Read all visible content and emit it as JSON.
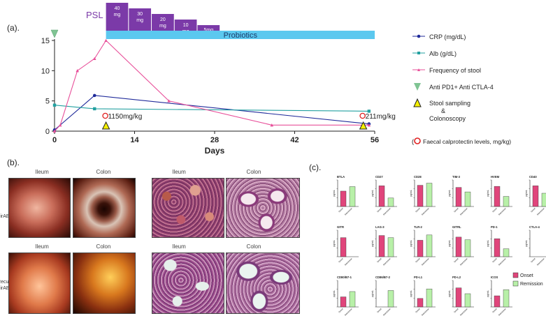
{
  "panel_labels": {
    "a": "(a).",
    "b": "(b).",
    "c": "(c)."
  },
  "chart_data": [
    {
      "type": "line",
      "panel": "a",
      "xlabel": "Days",
      "ylabel": "",
      "xlim": [
        0,
        56
      ],
      "ylim": [
        0,
        15
      ],
      "x_ticks": [
        0,
        14,
        28,
        42,
        56
      ],
      "y_ticks": [
        0,
        5,
        10,
        15
      ],
      "series": [
        {
          "name": "CRP (mg/dL)",
          "color": "#1f2a9a",
          "marker": "circle",
          "x": [
            0,
            7,
            55
          ],
          "y": [
            0.2,
            5.9,
            1.2
          ]
        },
        {
          "name": "Alb (g/dL)",
          "color": "#22a0a0",
          "marker": "square",
          "x": [
            0,
            7,
            55
          ],
          "y": [
            4.3,
            3.7,
            3.3
          ]
        },
        {
          "name": "Frequency of stool",
          "color": "#e8509a",
          "marker": "triangle",
          "x": [
            0,
            1,
            4,
            7,
            9,
            20,
            38,
            55
          ],
          "y": [
            0,
            1,
            10,
            12,
            15,
            5,
            1,
            1
          ]
        }
      ],
      "psl": {
        "label": "PSL",
        "color": "#7b3aa8",
        "doses": [
          {
            "text": "40\nmg",
            "x_start": 9,
            "x_end": 13,
            "level": 5
          },
          {
            "text": "30\nmg",
            "x_start": 13,
            "x_end": 17,
            "level": 4
          },
          {
            "text": "20\nmg",
            "x_start": 17,
            "x_end": 21,
            "level": 3
          },
          {
            "text": "10\nmg",
            "x_start": 21,
            "x_end": 25,
            "level": 2
          },
          {
            "text": "5mg",
            "x_start": 25,
            "x_end": 29,
            "level": 1
          }
        ]
      },
      "probiotics": {
        "label": "Probiotics",
        "x_start": 9,
        "x_end": 56,
        "color": "#5bc8ef"
      },
      "annotations": {
        "anti_pd1_day": 0,
        "stool_sampling_days": [
          9,
          54
        ],
        "calprotectin": [
          {
            "day": 9,
            "text": "1150mg/kg"
          },
          {
            "day": 54,
            "text": "211mg/kg"
          }
        ]
      },
      "legend": {
        "placement": "right",
        "entries": [
          {
            "label": "CRP (mg/dL)",
            "type": "line-circle",
            "color": "#1f2a9a"
          },
          {
            "label": "Alb (g/dL)",
            "type": "line-square",
            "color": "#22a0a0"
          },
          {
            "label": "Frequency of stool",
            "type": "line-triangle",
            "color": "#e8509a"
          },
          {
            "label": "Anti PD1+ Anti CTLA-4",
            "type": "green-triangle",
            "color": "#7fc493"
          },
          {
            "label": "Stool sampling\n&\nColonoscopy",
            "type": "yellow-triangle",
            "color": "#f5f000"
          },
          {
            "label": "Faecal calprotectin levels, mg/kg)",
            "type": "red-circle",
            "color": "#e02020",
            "prefix": "("
          }
        ]
      }
    },
    {
      "type": "bar",
      "panel": "c",
      "categories": [
        "Onset",
        "Remission"
      ],
      "colors": {
        "Onset": "#e0457b",
        "Remission": "#b8f0a8"
      },
      "legend": {
        "placement": "bottom-right",
        "entries": [
          "Onset",
          "Remission"
        ]
      },
      "ylabel": "pg/mL",
      "subplots": [
        {
          "title": "BTLA",
          "values": [
            0.58,
            0.75
          ]
        },
        {
          "title": "CD27",
          "values": [
            0.78,
            0.32
          ]
        },
        {
          "title": "CD28",
          "values": [
            0.8,
            0.88
          ]
        },
        {
          "title": "TIM-3",
          "values": [
            0.72,
            0.55
          ]
        },
        {
          "title": "HVEM",
          "values": [
            0.76,
            0.38
          ]
        },
        {
          "title": "CD40",
          "values": [
            0.78,
            0.5
          ]
        },
        {
          "title": "GITR",
          "values": [
            0.72,
            0.0
          ]
        },
        {
          "title": "LAG-3",
          "values": [
            0.8,
            0.72
          ]
        },
        {
          "title": "TLR-2",
          "values": [
            0.62,
            0.82
          ]
        },
        {
          "title": "GITRL",
          "values": [
            0.74,
            0.64
          ]
        },
        {
          "title": "PD-1",
          "values": [
            0.68,
            0.3
          ]
        },
        {
          "title": "CTLA-4",
          "values": [
            0.0,
            0.0
          ]
        },
        {
          "title": "CD80/B7-1",
          "values": [
            0.38,
            0.58
          ]
        },
        {
          "title": "CD86/B7-2",
          "values": [
            0.0,
            0.62
          ]
        },
        {
          "title": "PD-L1",
          "values": [
            0.32,
            0.68
          ]
        },
        {
          "title": "PD-L2",
          "values": [
            0.72,
            0.5
          ]
        },
        {
          "title": "ICOS",
          "values": [
            0.42,
            0.65
          ]
        }
      ]
    }
  ],
  "panel_b": {
    "col_titles": [
      "Ileum",
      "Colon",
      "Ileum",
      "Colon"
    ],
    "row_labels": [
      {
        "line1": "Onset of",
        "line2": "irAE enteritis"
      },
      {
        "line1": "Recurrence of",
        "line2": "irAE enteritis"
      }
    ]
  }
}
